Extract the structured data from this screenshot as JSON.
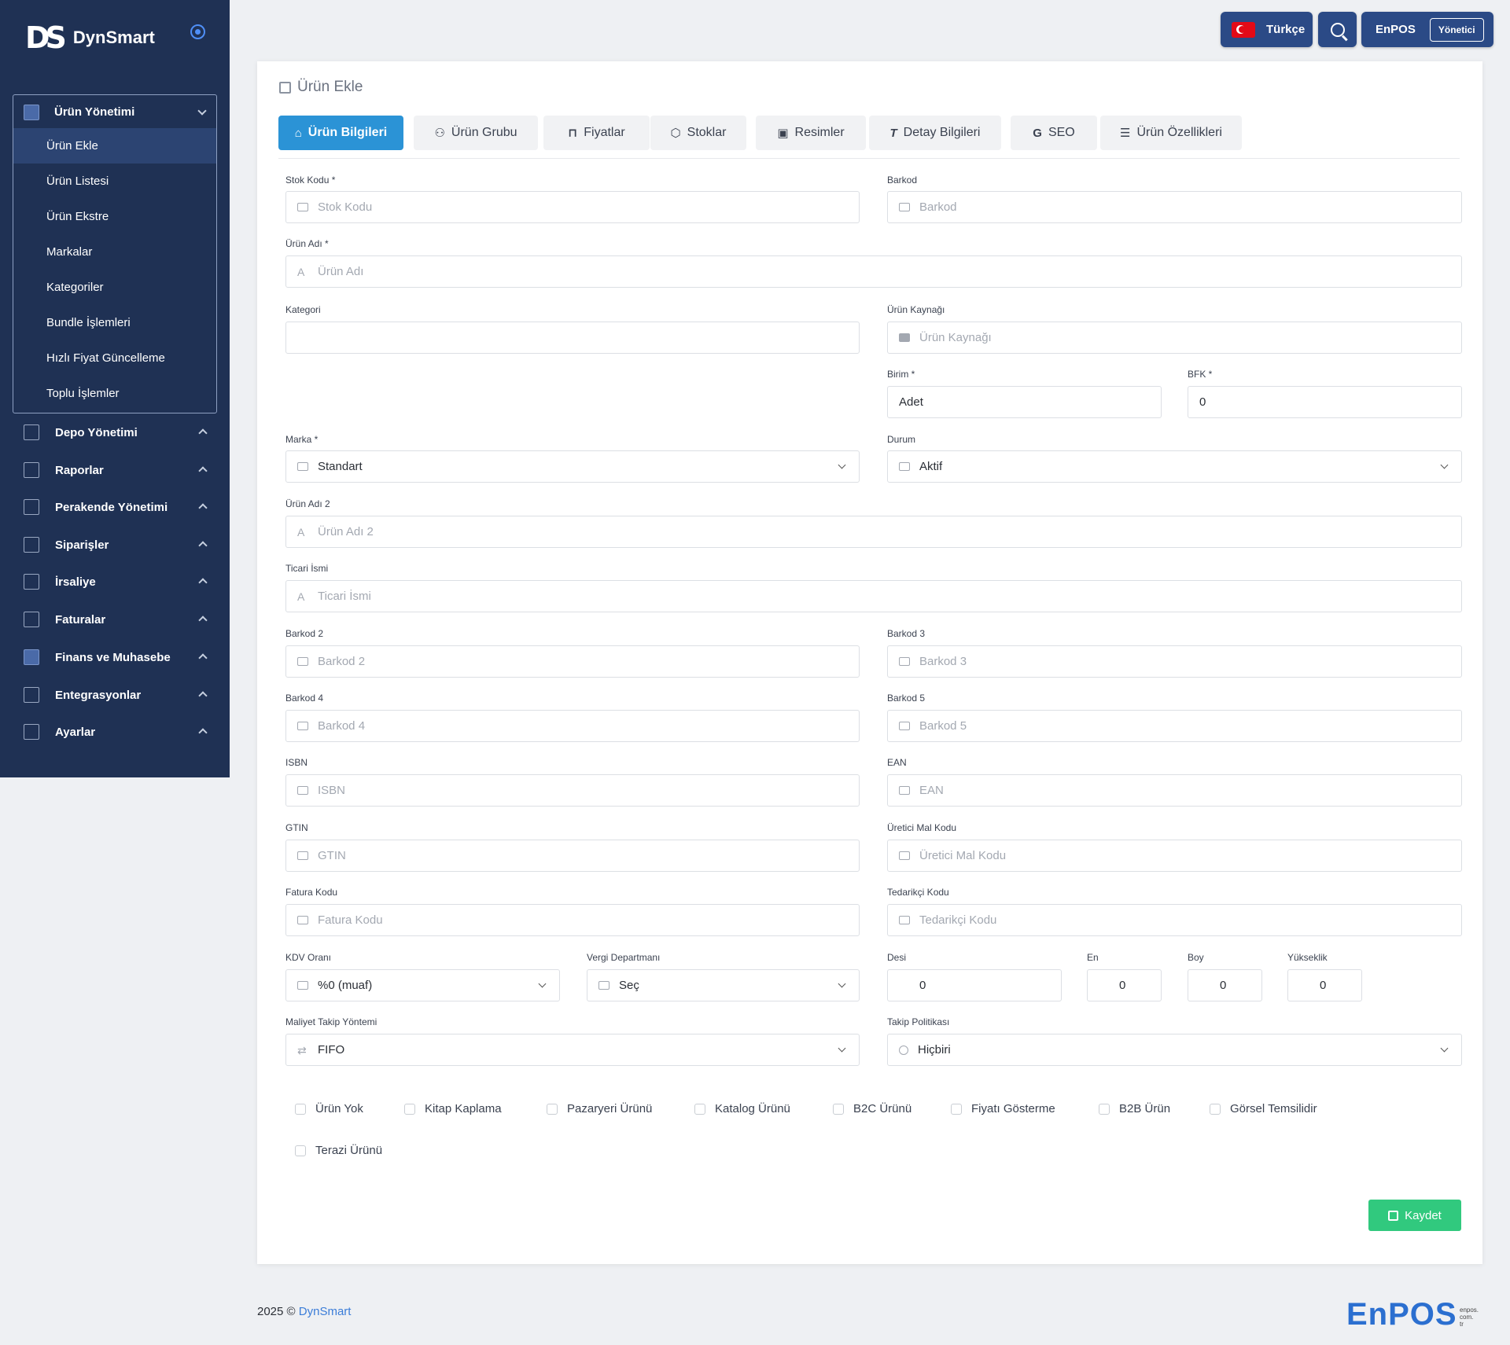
{
  "brand": {
    "name": "DynSmart",
    "mark": "DS"
  },
  "topbar": {
    "language": "Türkçe",
    "app": "EnPOS",
    "role": "Yönetici"
  },
  "sidebar": {
    "open_group": {
      "label": "Ürün Yönetimi",
      "items": [
        "Ürün Ekle",
        "Ürün Listesi",
        "Ürün Ekstre",
        "Markalar",
        "Kategoriler",
        "Bundle İşlemleri",
        "Hızlı Fiyat Güncelleme",
        "Toplu İşlemler"
      ]
    },
    "groups": [
      "Depo Yönetimi",
      "Raporlar",
      "Perakende Yönetimi",
      "Siparişler",
      "İrsaliye",
      "Faturalar",
      "Finans ve Muhasebe",
      "Entegrasyonlar",
      "Ayarlar"
    ]
  },
  "page": {
    "title": "Ürün Ekle",
    "tabs": [
      "Ürün Bilgileri",
      "Ürün Grubu",
      "Fiyatlar",
      "Stoklar",
      "Resimler",
      "Detay Bilgileri",
      "SEO",
      "Ürün Özellikleri"
    ]
  },
  "form": {
    "stok_kodu": {
      "label": "Stok Kodu *",
      "placeholder": "Stok Kodu"
    },
    "barkod": {
      "label": "Barkod",
      "placeholder": "Barkod"
    },
    "urun_adi": {
      "label": "Ürün Adı *",
      "placeholder": "Ürün Adı"
    },
    "kategori": {
      "label": "Kategori"
    },
    "urun_kaynagi": {
      "label": "Ürün Kaynağı",
      "placeholder": "Ürün Kaynağı"
    },
    "birim": {
      "label": "Birim *",
      "value": "Adet"
    },
    "bfk": {
      "label": "BFK *",
      "value": "0"
    },
    "marka": {
      "label": "Marka *",
      "value": "Standart"
    },
    "durum": {
      "label": "Durum",
      "value": "Aktif"
    },
    "urun_adi_2": {
      "label": "Ürün Adı 2",
      "placeholder": "Ürün Adı 2"
    },
    "ticari_ismi": {
      "label": "Ticari İsmi",
      "placeholder": "Ticari İsmi"
    },
    "barkod_2": {
      "label": "Barkod 2",
      "placeholder": "Barkod 2"
    },
    "barkod_3": {
      "label": "Barkod 3",
      "placeholder": "Barkod 3"
    },
    "barkod_4": {
      "label": "Barkod 4",
      "placeholder": "Barkod 4"
    },
    "barkod_5": {
      "label": "Barkod 5",
      "placeholder": "Barkod 5"
    },
    "isbn": {
      "label": "ISBN",
      "placeholder": "ISBN"
    },
    "ean": {
      "label": "EAN",
      "placeholder": "EAN"
    },
    "gtin": {
      "label": "GTIN",
      "placeholder": "GTIN"
    },
    "uretici_mal_kodu": {
      "label": "Üretici Mal Kodu",
      "placeholder": "Üretici Mal Kodu"
    },
    "fatura_kodu": {
      "label": "Fatura Kodu",
      "placeholder": "Fatura Kodu"
    },
    "tedarikci_kodu": {
      "label": "Tedarikçi Kodu",
      "placeholder": "Tedarikçi Kodu"
    },
    "kdv_orani": {
      "label": "KDV Oranı",
      "value": "%0 (muaf)"
    },
    "vergi_departmani": {
      "label": "Vergi Departmanı",
      "value": "Seç"
    },
    "desi": {
      "label": "Desi",
      "value": "0"
    },
    "en": {
      "label": "En",
      "value": "0"
    },
    "boy": {
      "label": "Boy",
      "value": "0"
    },
    "yukseklik": {
      "label": "Yükseklik",
      "value": "0"
    },
    "maliyet_takip": {
      "label": "Maliyet Takip Yöntemi",
      "value": "FIFO"
    },
    "takip_politikasi": {
      "label": "Takip Politikası",
      "value": "Hiçbiri"
    },
    "checkboxes": [
      "Ürün Yok",
      "Kitap Kaplama",
      "Pazaryeri Ürünü",
      "Katalog Ürünü",
      "B2C Ürünü",
      "Fiyatı Gösterme",
      "B2B Ürün",
      "Görsel Temsilidir",
      "Terazi Ürünü"
    ],
    "save_label": "Kaydet"
  },
  "footer": {
    "year": "2025 ©",
    "brand": "DynSmart",
    "logo": "EnPOS",
    "domain": [
      "enpos.",
      "com.",
      "tr"
    ]
  }
}
